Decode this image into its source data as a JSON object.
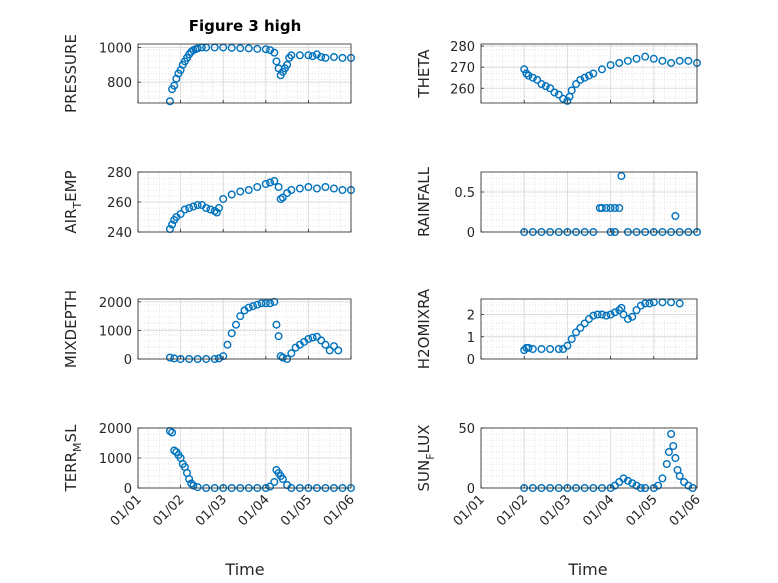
{
  "figure": {
    "title": "Figure 3 high",
    "marker_color": "#0072bd"
  },
  "chart_data": [
    {
      "type": "scatter",
      "title": "Figure 3 high",
      "ylabel": "PRESSURE",
      "ylim": [
        680,
        1020
      ],
      "yticks": [
        800,
        1000
      ],
      "xlim": [
        0,
        5
      ],
      "xticks": [
        "01/01",
        "01/02",
        "01/03",
        "01/04",
        "01/05",
        "01/06"
      ],
      "grid": true,
      "points": [
        [
          0.75,
          690
        ],
        [
          0.8,
          760
        ],
        [
          0.85,
          780
        ],
        [
          0.9,
          820
        ],
        [
          0.95,
          850
        ],
        [
          1.0,
          870
        ],
        [
          1.05,
          900
        ],
        [
          1.1,
          920
        ],
        [
          1.15,
          940
        ],
        [
          1.2,
          960
        ],
        [
          1.25,
          975
        ],
        [
          1.3,
          985
        ],
        [
          1.35,
          990
        ],
        [
          1.4,
          995
        ],
        [
          1.5,
          1000
        ],
        [
          1.6,
          1000
        ],
        [
          1.8,
          1000
        ],
        [
          2.0,
          1000
        ],
        [
          2.2,
          998
        ],
        [
          2.4,
          996
        ],
        [
          2.6,
          995
        ],
        [
          2.8,
          992
        ],
        [
          3.0,
          990
        ],
        [
          3.1,
          985
        ],
        [
          3.2,
          970
        ],
        [
          3.25,
          920
        ],
        [
          3.3,
          880
        ],
        [
          3.35,
          840
        ],
        [
          3.4,
          860
        ],
        [
          3.45,
          880
        ],
        [
          3.5,
          900
        ],
        [
          3.55,
          940
        ],
        [
          3.6,
          955
        ],
        [
          3.8,
          955
        ],
        [
          4.0,
          955
        ],
        [
          4.1,
          950
        ],
        [
          4.2,
          960
        ],
        [
          4.3,
          945
        ],
        [
          4.4,
          940
        ],
        [
          4.6,
          945
        ],
        [
          4.8,
          940
        ],
        [
          5.0,
          940
        ]
      ]
    },
    {
      "type": "scatter",
      "ylabel": "THETA",
      "ylim": [
        253,
        281
      ],
      "yticks": [
        260,
        270,
        280
      ],
      "xlim": [
        0,
        5
      ],
      "xticks": [
        "01/01",
        "01/02",
        "01/03",
        "01/04",
        "01/05",
        "01/06"
      ],
      "grid": true,
      "points": [
        [
          1.0,
          269
        ],
        [
          1.05,
          267
        ],
        [
          1.1,
          266
        ],
        [
          1.2,
          265
        ],
        [
          1.3,
          264
        ],
        [
          1.4,
          262
        ],
        [
          1.5,
          261
        ],
        [
          1.6,
          260
        ],
        [
          1.7,
          258
        ],
        [
          1.8,
          257
        ],
        [
          1.9,
          255
        ],
        [
          2.0,
          254
        ],
        [
          2.05,
          256
        ],
        [
          2.1,
          259
        ],
        [
          2.2,
          262
        ],
        [
          2.3,
          264
        ],
        [
          2.4,
          265
        ],
        [
          2.5,
          266
        ],
        [
          2.6,
          267
        ],
        [
          2.8,
          269
        ],
        [
          3.0,
          271
        ],
        [
          3.2,
          272
        ],
        [
          3.4,
          273
        ],
        [
          3.6,
          274
        ],
        [
          3.8,
          275
        ],
        [
          4.0,
          274
        ],
        [
          4.2,
          273
        ],
        [
          4.4,
          272
        ],
        [
          4.6,
          273
        ],
        [
          4.8,
          273
        ],
        [
          5.0,
          272
        ]
      ]
    },
    {
      "type": "scatter",
      "ylabel": "AIR_TEMP",
      "ylim": [
        240,
        280
      ],
      "yticks": [
        240,
        260,
        280
      ],
      "xlim": [
        0,
        5
      ],
      "xticks": [
        "01/01",
        "01/02",
        "01/03",
        "01/04",
        "01/05",
        "01/06"
      ],
      "grid": true,
      "points": [
        [
          0.75,
          242
        ],
        [
          0.8,
          245
        ],
        [
          0.85,
          248
        ],
        [
          0.9,
          250
        ],
        [
          1.0,
          252
        ],
        [
          1.1,
          255
        ],
        [
          1.2,
          256
        ],
        [
          1.3,
          257
        ],
        [
          1.4,
          258
        ],
        [
          1.5,
          258
        ],
        [
          1.6,
          256
        ],
        [
          1.7,
          255
        ],
        [
          1.8,
          254
        ],
        [
          1.85,
          253
        ],
        [
          1.9,
          256
        ],
        [
          2.0,
          262
        ],
        [
          2.2,
          265
        ],
        [
          2.4,
          267
        ],
        [
          2.6,
          268
        ],
        [
          2.8,
          270
        ],
        [
          3.0,
          272
        ],
        [
          3.1,
          273
        ],
        [
          3.2,
          274
        ],
        [
          3.3,
          270
        ],
        [
          3.35,
          262
        ],
        [
          3.4,
          263
        ],
        [
          3.5,
          266
        ],
        [
          3.6,
          268
        ],
        [
          3.8,
          269
        ],
        [
          4.0,
          270
        ],
        [
          4.2,
          269
        ],
        [
          4.4,
          270
        ],
        [
          4.6,
          269
        ],
        [
          4.8,
          268
        ],
        [
          5.0,
          268
        ]
      ]
    },
    {
      "type": "scatter",
      "ylabel": "RAINFALL",
      "ylim": [
        0,
        0.75
      ],
      "yticks": [
        0,
        0.5
      ],
      "xlim": [
        0,
        5
      ],
      "xticks": [
        "01/01",
        "01/02",
        "01/03",
        "01/04",
        "01/05",
        "01/06"
      ],
      "grid": true,
      "points": [
        [
          1.0,
          0
        ],
        [
          1.2,
          0
        ],
        [
          1.4,
          0
        ],
        [
          1.6,
          0
        ],
        [
          1.8,
          0
        ],
        [
          2.0,
          0
        ],
        [
          2.2,
          0
        ],
        [
          2.4,
          0
        ],
        [
          2.6,
          0
        ],
        [
          2.75,
          0.3
        ],
        [
          2.8,
          0.3
        ],
        [
          2.9,
          0.3
        ],
        [
          3.0,
          0.3
        ],
        [
          3.1,
          0.3
        ],
        [
          3.2,
          0.3
        ],
        [
          3.0,
          0
        ],
        [
          3.1,
          0
        ],
        [
          3.25,
          0.7
        ],
        [
          3.4,
          0
        ],
        [
          3.6,
          0
        ],
        [
          3.8,
          0
        ],
        [
          4.0,
          0
        ],
        [
          4.2,
          0
        ],
        [
          4.4,
          0
        ],
        [
          4.5,
          0.2
        ],
        [
          4.6,
          0
        ],
        [
          4.8,
          0
        ],
        [
          5.0,
          0
        ]
      ]
    },
    {
      "type": "scatter",
      "ylabel": "MIXDEPTH",
      "ylim": [
        0,
        2100
      ],
      "yticks": [
        0,
        1000,
        2000
      ],
      "xlim": [
        0,
        5
      ],
      "xticks": [
        "01/01",
        "01/02",
        "01/03",
        "01/04",
        "01/05",
        "01/06"
      ],
      "grid": true,
      "points": [
        [
          0.75,
          50
        ],
        [
          0.85,
          20
        ],
        [
          1.0,
          0
        ],
        [
          1.2,
          0
        ],
        [
          1.4,
          0
        ],
        [
          1.6,
          0
        ],
        [
          1.8,
          0
        ],
        [
          1.9,
          20
        ],
        [
          2.0,
          100
        ],
        [
          2.1,
          500
        ],
        [
          2.2,
          900
        ],
        [
          2.3,
          1200
        ],
        [
          2.4,
          1500
        ],
        [
          2.5,
          1700
        ],
        [
          2.6,
          1800
        ],
        [
          2.7,
          1850
        ],
        [
          2.8,
          1900
        ],
        [
          2.9,
          1950
        ],
        [
          3.0,
          1950
        ],
        [
          3.1,
          1950
        ],
        [
          3.2,
          2000
        ],
        [
          3.25,
          1200
        ],
        [
          3.3,
          800
        ],
        [
          3.35,
          100
        ],
        [
          3.4,
          50
        ],
        [
          3.5,
          0
        ],
        [
          3.6,
          200
        ],
        [
          3.7,
          400
        ],
        [
          3.8,
          500
        ],
        [
          3.9,
          600
        ],
        [
          4.0,
          700
        ],
        [
          4.1,
          750
        ],
        [
          4.2,
          780
        ],
        [
          4.3,
          650
        ],
        [
          4.4,
          500
        ],
        [
          4.5,
          300
        ],
        [
          4.6,
          450
        ],
        [
          4.7,
          300
        ]
      ]
    },
    {
      "type": "scatter",
      "ylabel": "H2OMIXRA",
      "ylim": [
        0,
        2.7
      ],
      "yticks": [
        0,
        1,
        2
      ],
      "xlim": [
        0,
        5
      ],
      "xticks": [
        "01/01",
        "01/02",
        "01/03",
        "01/04",
        "01/05",
        "01/06"
      ],
      "grid": true,
      "points": [
        [
          1.0,
          0.4
        ],
        [
          1.05,
          0.5
        ],
        [
          1.1,
          0.5
        ],
        [
          1.2,
          0.45
        ],
        [
          1.4,
          0.45
        ],
        [
          1.6,
          0.45
        ],
        [
          1.8,
          0.45
        ],
        [
          1.9,
          0.45
        ],
        [
          2.0,
          0.6
        ],
        [
          2.1,
          0.9
        ],
        [
          2.2,
          1.2
        ],
        [
          2.3,
          1.4
        ],
        [
          2.4,
          1.6
        ],
        [
          2.5,
          1.8
        ],
        [
          2.6,
          1.95
        ],
        [
          2.7,
          2.0
        ],
        [
          2.8,
          2.0
        ],
        [
          2.9,
          1.95
        ],
        [
          3.0,
          2.0
        ],
        [
          3.1,
          2.1
        ],
        [
          3.2,
          2.2
        ],
        [
          3.25,
          2.3
        ],
        [
          3.3,
          2.0
        ],
        [
          3.4,
          1.8
        ],
        [
          3.5,
          1.9
        ],
        [
          3.6,
          2.2
        ],
        [
          3.7,
          2.4
        ],
        [
          3.8,
          2.5
        ],
        [
          3.9,
          2.5
        ],
        [
          4.0,
          2.55
        ],
        [
          4.2,
          2.55
        ],
        [
          4.4,
          2.55
        ],
        [
          4.6,
          2.5
        ]
      ]
    },
    {
      "type": "scatter",
      "ylabel": "TERR_MSL",
      "ylim": [
        0,
        2000
      ],
      "yticks": [
        0,
        1000,
        2000
      ],
      "xlim": [
        0,
        5
      ],
      "xticks": [
        "01/01",
        "01/02",
        "01/03",
        "01/04",
        "01/05",
        "01/06"
      ],
      "grid": true,
      "points": [
        [
          0.75,
          1900
        ],
        [
          0.8,
          1850
        ],
        [
          0.85,
          1250
        ],
        [
          0.9,
          1200
        ],
        [
          0.95,
          1100
        ],
        [
          1.0,
          1000
        ],
        [
          1.05,
          800
        ],
        [
          1.1,
          700
        ],
        [
          1.15,
          500
        ],
        [
          1.2,
          300
        ],
        [
          1.25,
          150
        ],
        [
          1.3,
          80
        ],
        [
          1.4,
          30
        ],
        [
          1.6,
          0
        ],
        [
          1.8,
          0
        ],
        [
          2.0,
          0
        ],
        [
          2.2,
          0
        ],
        [
          2.4,
          0
        ],
        [
          2.6,
          0
        ],
        [
          2.8,
          0
        ],
        [
          3.0,
          0
        ],
        [
          3.1,
          50
        ],
        [
          3.2,
          200
        ],
        [
          3.25,
          600
        ],
        [
          3.3,
          500
        ],
        [
          3.35,
          400
        ],
        [
          3.4,
          300
        ],
        [
          3.5,
          100
        ],
        [
          3.6,
          0
        ],
        [
          3.8,
          0
        ],
        [
          4.0,
          0
        ],
        [
          4.2,
          0
        ],
        [
          4.4,
          0
        ],
        [
          4.6,
          0
        ],
        [
          4.8,
          0
        ],
        [
          5.0,
          0
        ]
      ]
    },
    {
      "type": "scatter",
      "ylabel": "SUN_FLUX",
      "ylim": [
        0,
        50
      ],
      "yticks": [
        0,
        50
      ],
      "xlim": [
        0,
        5
      ],
      "xticks": [
        "01/01",
        "01/02",
        "01/03",
        "01/04",
        "01/05",
        "01/06"
      ],
      "grid": true,
      "points": [
        [
          1.0,
          0
        ],
        [
          1.2,
          0
        ],
        [
          1.4,
          0
        ],
        [
          1.6,
          0
        ],
        [
          1.8,
          0
        ],
        [
          2.0,
          0
        ],
        [
          2.2,
          0
        ],
        [
          2.4,
          0
        ],
        [
          2.6,
          0
        ],
        [
          2.8,
          0
        ],
        [
          3.0,
          0
        ],
        [
          3.1,
          2
        ],
        [
          3.2,
          5
        ],
        [
          3.3,
          8
        ],
        [
          3.4,
          6
        ],
        [
          3.5,
          4
        ],
        [
          3.6,
          2
        ],
        [
          3.7,
          0
        ],
        [
          3.8,
          0
        ],
        [
          4.0,
          0
        ],
        [
          4.1,
          2
        ],
        [
          4.2,
          8
        ],
        [
          4.3,
          20
        ],
        [
          4.35,
          30
        ],
        [
          4.4,
          45
        ],
        [
          4.45,
          35
        ],
        [
          4.5,
          25
        ],
        [
          4.55,
          15
        ],
        [
          4.6,
          10
        ],
        [
          4.7,
          5
        ],
        [
          4.8,
          2
        ],
        [
          4.9,
          0
        ]
      ]
    }
  ],
  "xlabel": "Time"
}
